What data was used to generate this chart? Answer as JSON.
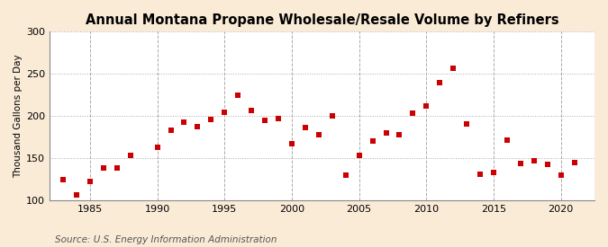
{
  "title": "Annual Montana Propane Wholesale/Resale Volume by Refiners",
  "ylabel": "Thousand Gallons per Day",
  "source": "Source: U.S. Energy Information Administration",
  "background_color": "#faebd7",
  "plot_background_color": "#ffffff",
  "marker_color": "#cc0000",
  "marker_size": 4,
  "marker_style": "s",
  "xlim": [
    1982,
    2022.5
  ],
  "ylim": [
    100,
    300
  ],
  "xticks": [
    1985,
    1990,
    1995,
    2000,
    2005,
    2010,
    2015,
    2020
  ],
  "yticks": [
    100,
    150,
    200,
    250,
    300
  ],
  "years": [
    1983,
    1984,
    1985,
    1986,
    1987,
    1988,
    1990,
    1991,
    1992,
    1993,
    1994,
    1995,
    1996,
    1997,
    1998,
    1999,
    2000,
    2001,
    2002,
    2003,
    2004,
    2005,
    2006,
    2007,
    2008,
    2009,
    2010,
    2011,
    2012,
    2013,
    2014,
    2015,
    2016,
    2017,
    2018,
    2019,
    2020,
    2021
  ],
  "values": [
    125,
    107,
    122,
    139,
    139,
    153,
    163,
    183,
    193,
    187,
    196,
    205,
    225,
    207,
    195,
    197,
    167,
    186,
    178,
    200,
    130,
    153,
    170,
    180,
    178,
    203,
    212,
    240,
    257,
    191,
    131,
    133,
    171,
    144,
    147,
    143,
    130,
    145
  ],
  "title_fontsize": 10.5,
  "ylabel_fontsize": 7.5,
  "tick_fontsize": 8,
  "source_fontsize": 7.5
}
